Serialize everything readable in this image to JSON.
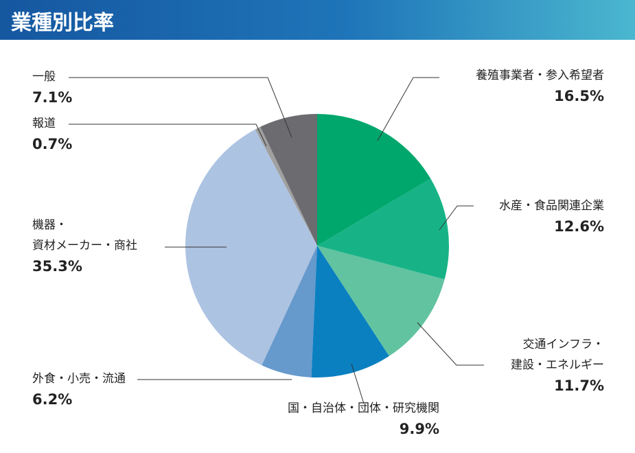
{
  "chart_data": {
    "type": "pie",
    "title": "業種別比率",
    "categories": [
      "養殖事業者・参入希望者",
      "水産・食品関連企業",
      "交通インフラ・\n建設・エネルギー",
      "国・自治体・団体・研究機関",
      "外食・小売・流通",
      "機器・\n資材メーカー・商社",
      "報道",
      "一般"
    ],
    "values": [
      16.5,
      12.6,
      11.7,
      9.9,
      6.2,
      35.3,
      0.7,
      7.1
    ],
    "value_labels": [
      "16.5%",
      "12.6%",
      "11.7%",
      "9.9%",
      "6.2%",
      "35.3%",
      "0.7%",
      "7.1%"
    ],
    "colors": [
      "#00a76c",
      "#17b387",
      "#62c3a1",
      "#0a80c0",
      "#6699cc",
      "#adc3e2",
      "#a0a0a0",
      "#6b6b70"
    ]
  }
}
